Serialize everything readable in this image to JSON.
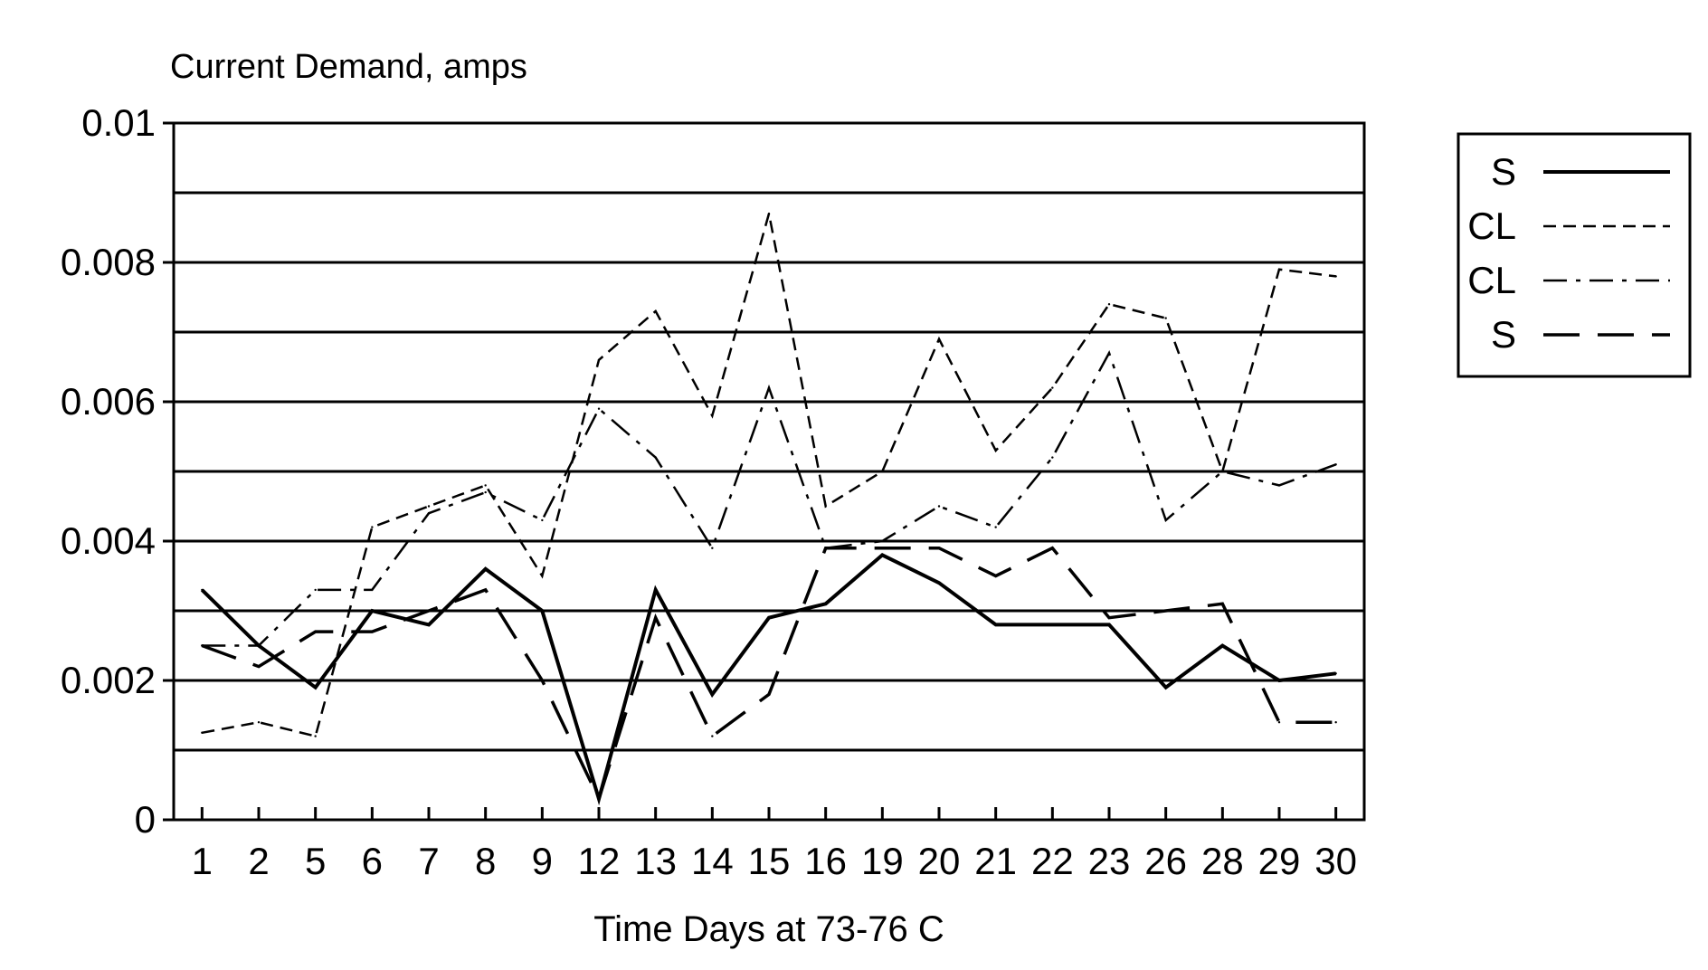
{
  "chart_data": {
    "type": "line",
    "title": "",
    "ylabel": "Current Demand, amps",
    "xlabel": "Time Days at 73-76 C",
    "ylim": [
      0,
      0.01
    ],
    "yticks": [
      0,
      0.002,
      0.004,
      0.006,
      0.008,
      0.01
    ],
    "ytick_labels": [
      "0",
      "0.002",
      "0.004",
      "0.006",
      "0.008",
      "0.01"
    ],
    "grid": true,
    "legend_position": "top-right",
    "categories": [
      "1",
      "2",
      "5",
      "6",
      "7",
      "8",
      "9",
      "12",
      "13",
      "14",
      "15",
      "16",
      "19",
      "20",
      "21",
      "22",
      "23",
      "26",
      "28",
      "29",
      "30"
    ],
    "series": [
      {
        "name": "S",
        "style": "solid",
        "values": [
          0.0033,
          0.0025,
          0.0019,
          0.003,
          0.0028,
          0.0036,
          0.003,
          0.0003,
          0.0033,
          0.0018,
          0.0029,
          0.0031,
          0.0038,
          0.0034,
          0.0028,
          0.0028,
          0.0028,
          0.0019,
          0.0025,
          0.002,
          0.0021
        ]
      },
      {
        "name": "CL",
        "style": "short-dash",
        "values": [
          0.00125,
          0.0014,
          0.0012,
          0.0042,
          0.0045,
          0.0048,
          0.0035,
          0.0066,
          0.0073,
          0.0058,
          0.0087,
          0.0045,
          0.005,
          0.0069,
          0.0053,
          0.0062,
          0.0074,
          0.0072,
          0.005,
          0.0079,
          0.0078
        ]
      },
      {
        "name": "CL",
        "style": "dash-dot",
        "values": [
          0.0025,
          0.0025,
          0.0033,
          0.0033,
          0.0044,
          0.0047,
          0.0043,
          0.0059,
          0.0052,
          0.0039,
          0.0062,
          0.0039,
          0.004,
          0.0045,
          0.0042,
          0.0052,
          0.0067,
          0.0043,
          0.005,
          0.0048,
          0.0051
        ]
      },
      {
        "name": "S",
        "style": "long-dash",
        "values": [
          0.0025,
          0.0022,
          0.0027,
          0.0027,
          0.003,
          0.0033,
          0.002,
          0.0003,
          0.0029,
          0.0012,
          0.0018,
          0.0039,
          0.0039,
          0.0039,
          0.0035,
          0.0039,
          0.0029,
          0.003,
          0.0031,
          0.0014,
          0.0014
        ]
      }
    ]
  }
}
